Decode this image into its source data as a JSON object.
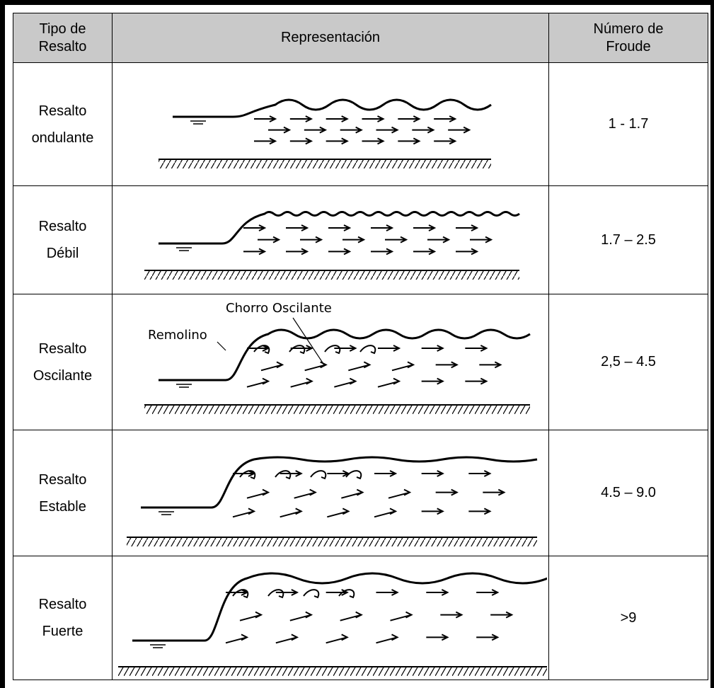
{
  "header": {
    "type": [
      "Tipo de",
      "Resalto"
    ],
    "representation": "Representación",
    "froude": [
      "Número de",
      "Froude"
    ]
  },
  "rows": [
    {
      "type": [
        "Resalto",
        "ondulante"
      ],
      "froude": "1 - 1.7"
    },
    {
      "type": [
        "Resalto",
        "Débil"
      ],
      "froude": "1.7 – 2.5"
    },
    {
      "type": [
        "Resalto",
        "Oscilante"
      ],
      "froude": "2,5 – 4.5",
      "annotations": [
        "Chorro Oscilante",
        "Remolino"
      ]
    },
    {
      "type": [
        "Resalto",
        "Estable"
      ],
      "froude": "4.5 – 9.0"
    },
    {
      "type": [
        "Resalto",
        "Fuerte"
      ],
      "froude": ">9"
    }
  ]
}
